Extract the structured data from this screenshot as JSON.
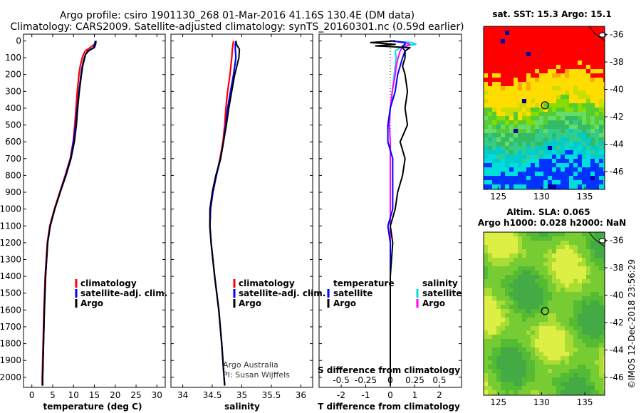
{
  "header": {
    "line1": "Argo profile: csiro 1901130_268 01-Mar-2016 41.16S 130.4E (DM data)",
    "line2": "Climatology: CARS2009. Satellite-adjusted climatology: synTS_20160301.nc (0.59d earlier)"
  },
  "watermark": "©IMOS 12-Dec-2018 23:56:29",
  "credit": {
    "line1": "Argo Australia",
    "line2": "PI: Susan Wijffels"
  },
  "colors": {
    "climatology": "#ff0000",
    "satellite": "#0000ff",
    "argo": "#000000",
    "sal_satellite": "#00dddd",
    "sal_argo": "#ff00ff"
  },
  "depth_ticks": [
    "0",
    "100",
    "200",
    "300",
    "400",
    "500",
    "600",
    "700",
    "800",
    "900",
    "1000",
    "1100",
    "1200",
    "1300",
    "1400",
    "1500",
    "1600",
    "1700",
    "1800",
    "1900",
    "2000"
  ],
  "chart_data": [
    {
      "type": "line",
      "id": "temperature",
      "xlabel": "temperature (deg C)",
      "ylabel": "depth",
      "xlim": [
        -2,
        32
      ],
      "ylim": [
        2060,
        -40
      ],
      "xticks": [
        0,
        5,
        10,
        15,
        20,
        25,
        30
      ],
      "xtick_labels": [
        "0",
        "5",
        "10",
        "15",
        "20",
        "25",
        "30"
      ],
      "legend": [
        "climatology",
        "satellite-adj. clim.",
        "Argo"
      ],
      "depth": [
        0,
        20,
        40,
        60,
        80,
        100,
        150,
        200,
        300,
        400,
        500,
        600,
        700,
        800,
        900,
        1000,
        1100,
        1200,
        1400,
        1600,
        1800,
        2000,
        2050
      ],
      "series": [
        {
          "name": "climatology",
          "values": [
            15.3,
            15.0,
            14.0,
            12.8,
            12.4,
            12.1,
            11.6,
            11.3,
            10.9,
            10.6,
            10.3,
            9.9,
            9.2,
            8.0,
            6.7,
            5.4,
            4.3,
            3.7,
            3.2,
            2.9,
            2.7,
            2.5,
            2.5
          ]
        },
        {
          "name": "satellite-adj. clim.",
          "values": [
            15.2,
            15.1,
            14.8,
            13.6,
            12.9,
            12.6,
            12.1,
            11.8,
            11.3,
            10.9,
            10.5,
            10.0,
            9.3,
            8.1,
            6.8,
            5.5,
            4.4,
            3.8,
            3.3,
            3.0,
            2.8,
            2.6,
            2.6
          ]
        },
        {
          "name": "Argo",
          "values": [
            15.4,
            15.3,
            15.0,
            13.4,
            12.9,
            12.7,
            12.2,
            11.9,
            11.4,
            11.0,
            10.7,
            10.2,
            9.4,
            8.2,
            6.8,
            5.5,
            4.4,
            3.8,
            3.3,
            3.0,
            2.8,
            2.6,
            2.6
          ]
        }
      ]
    },
    {
      "type": "line",
      "id": "salinity",
      "xlabel": "salinity",
      "ylabel": "depth",
      "xlim": [
        33.8,
        36.2
      ],
      "ylim": [
        2060,
        -40
      ],
      "xticks": [
        34,
        34.5,
        35,
        35.5,
        36
      ],
      "xtick_labels": [
        "34",
        "34.5",
        "35",
        "35.5",
        "36"
      ],
      "legend": [
        "climatology",
        "satellite-adj. clim.",
        "Argo"
      ],
      "depth": [
        0,
        20,
        50,
        100,
        200,
        300,
        400,
        500,
        600,
        700,
        800,
        900,
        1000,
        1100,
        1200,
        1400,
        1600,
        1800,
        2000,
        2050
      ],
      "series": [
        {
          "name": "climatology",
          "values": [
            34.86,
            34.85,
            34.84,
            34.83,
            34.8,
            34.76,
            34.73,
            34.71,
            34.68,
            34.63,
            34.57,
            34.51,
            34.47,
            34.46,
            34.48,
            34.54,
            34.61,
            34.66,
            34.7,
            34.71
          ]
        },
        {
          "name": "satellite-adj. clim.",
          "values": [
            34.9,
            34.89,
            34.89,
            34.9,
            34.86,
            34.81,
            34.76,
            34.73,
            34.69,
            34.64,
            34.57,
            34.51,
            34.47,
            34.46,
            34.48,
            34.54,
            34.61,
            34.66,
            34.7,
            34.71
          ]
        },
        {
          "name": "Argo",
          "values": [
            34.9,
            34.91,
            34.96,
            34.95,
            34.88,
            34.83,
            34.78,
            34.74,
            34.69,
            34.64,
            34.56,
            34.5,
            34.46,
            34.46,
            34.48,
            34.54,
            34.61,
            34.66,
            34.7,
            34.71
          ]
        }
      ]
    },
    {
      "type": "line",
      "id": "difference",
      "xlabel": "T difference from climatology",
      "xlabel_top": "S difference from climatology",
      "ylabel": "depth",
      "xlim": [
        -2.9,
        2.9
      ],
      "ylim": [
        2060,
        -40
      ],
      "xticks": [
        -2,
        -1,
        0,
        1,
        2
      ],
      "xtick_labels": [
        "-2",
        "-1",
        "0",
        "1",
        "2"
      ],
      "s_xticks": [
        -0.5,
        -0.25,
        0,
        0.25,
        0.5
      ],
      "s_xtick_labels": [
        "-0.5",
        "-0.25",
        "0",
        "0.25",
        "0.5"
      ],
      "legend_left_title": "temperature",
      "legend_right_title": "salinity",
      "legend_left": [
        "satellite",
        "Argo"
      ],
      "legend_right": [
        "satellite",
        "Argo"
      ],
      "depth": [
        0,
        10,
        20,
        30,
        40,
        60,
        100,
        150,
        200,
        300,
        400,
        500,
        600,
        700,
        800,
        900,
        1000,
        1100,
        1200,
        1400,
        1600,
        1800,
        2000,
        2050
      ],
      "series": [
        {
          "name": "temperature satellite",
          "values": [
            0.0,
            0.6,
            0.6,
            0.5,
            0.5,
            0.6,
            0.5,
            0.4,
            0.3,
            0.2,
            0.0,
            -0.1,
            -0.1,
            0.1,
            0.1,
            0.1,
            0.1,
            -0.1,
            0.0,
            0.0,
            0.0,
            0.0,
            0.0,
            0.0
          ]
        },
        {
          "name": "temperature Argo",
          "values": [
            0.2,
            -0.8,
            0.2,
            -0.6,
            0.8,
            0.6,
            0.6,
            0.5,
            0.6,
            0.7,
            0.6,
            0.7,
            0.4,
            0.6,
            0.5,
            0.3,
            0.2,
            0.0,
            0.1,
            0.0,
            0.0,
            0.0,
            0.0,
            0.0
          ]
        },
        {
          "name": "salinity satellite",
          "values": [
            0.0,
            0.22,
            0.26,
            0.15,
            0.1,
            0.05,
            0.06,
            0.05,
            0.04,
            0.02,
            0.0,
            -0.01,
            0.0,
            0.0,
            0.0,
            0.0,
            0.0,
            0.0,
            0.0,
            0.0,
            0.0,
            0.0,
            0.0,
            0.0
          ]
        },
        {
          "name": "salinity Argo",
          "values": [
            0.0,
            0.14,
            0.2,
            0.16,
            0.12,
            0.1,
            0.08,
            0.06,
            0.05,
            0.02,
            0.0,
            -0.01,
            0.0,
            0.0,
            0.0,
            0.0,
            0.0,
            0.0,
            0.0,
            0.0,
            0.0,
            0.0,
            0.0,
            0.0
          ]
        }
      ]
    }
  ],
  "maps": {
    "sst": {
      "title": "sat. SST: 15.3 Argo: 15.1",
      "xticks": [
        "125",
        "130",
        "135"
      ],
      "yticks": [
        "-36",
        "-38",
        "-40",
        "-42",
        "-44",
        "-46"
      ],
      "xlim": [
        123.3,
        137.3
      ],
      "ylim": [
        -47.3,
        -35.4
      ],
      "xtick_vals": [
        125,
        130,
        135
      ],
      "ytick_vals": [
        -36,
        -38,
        -40,
        -42,
        -44,
        -46
      ],
      "marker": [
        130.4,
        -41.16
      ]
    },
    "sla": {
      "title1": "Altim. SLA: 0.065",
      "title2": "Argo h1000: 0.028 h2000: NaN",
      "xticks": [
        "125",
        "130",
        "135"
      ],
      "yticks": [
        "-36",
        "-38",
        "-40",
        "-42",
        "-44",
        "-46"
      ],
      "xlim": [
        123.3,
        137.3
      ],
      "ylim": [
        -47.3,
        -35.4
      ],
      "xtick_vals": [
        125,
        130,
        135
      ],
      "ytick_vals": [
        -36,
        -38,
        -40,
        -42,
        -44,
        -46
      ],
      "marker": [
        130.4,
        -41.16
      ]
    }
  }
}
